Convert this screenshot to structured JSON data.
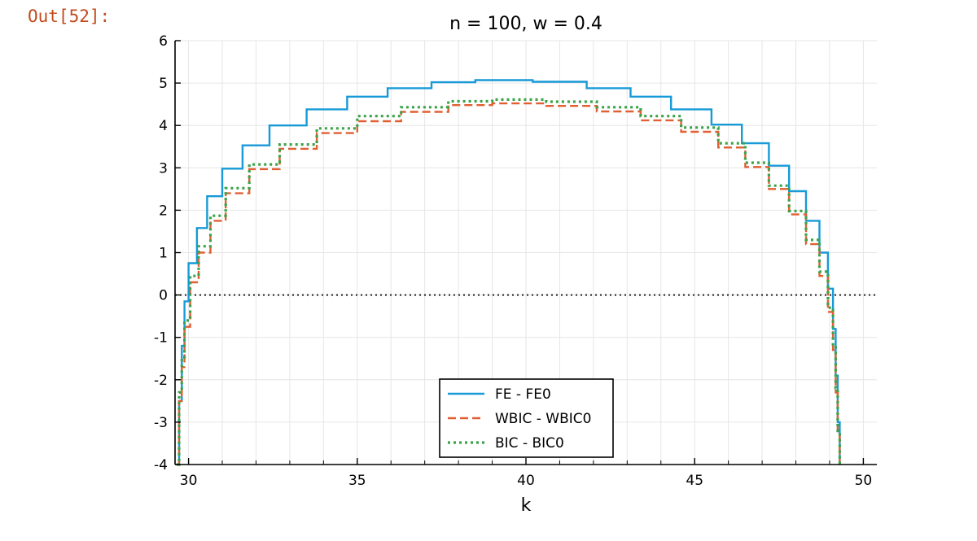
{
  "notebook": {
    "out_label": "Out[52]:"
  },
  "colors": {
    "fe": "#179ad7",
    "wbic": "#e15f32",
    "bic": "#3aa34a",
    "zero_line": "#222222"
  },
  "chart_data": {
    "type": "line",
    "title": "n = 100,  w = 0.4",
    "xlabel": "k",
    "ylabel": "",
    "xlim": [
      29.6,
      50.4
    ],
    "ylim": [
      -4,
      6
    ],
    "x_ticks": [
      30,
      35,
      40,
      45,
      50
    ],
    "y_ticks": [
      -4,
      -3,
      -2,
      -1,
      0,
      1,
      2,
      3,
      4,
      5,
      6
    ],
    "grid": true,
    "legend_position": "bottom-center",
    "zero_line": {
      "y": 0,
      "style": "dotted"
    },
    "series": [
      {
        "name": "FE - FE0",
        "style": "solid",
        "color_key": "fe",
        "points": [
          [
            29.65,
            -4
          ],
          [
            29.72,
            -2.5
          ],
          [
            29.8,
            -1.2
          ],
          [
            29.88,
            -0.15
          ],
          [
            30,
            0.75
          ],
          [
            30.25,
            1.58
          ],
          [
            30.55,
            2.33
          ],
          [
            31,
            2.98
          ],
          [
            31.6,
            3.53
          ],
          [
            32.4,
            4.0
          ],
          [
            33.5,
            4.38
          ],
          [
            34.7,
            4.68
          ],
          [
            35.9,
            4.88
          ],
          [
            37.2,
            5.02
          ],
          [
            38.5,
            5.07
          ],
          [
            40.2,
            5.03
          ],
          [
            41.8,
            4.88
          ],
          [
            43.1,
            4.68
          ],
          [
            44.3,
            4.38
          ],
          [
            45.5,
            4.02
          ],
          [
            46.4,
            3.58
          ],
          [
            47.2,
            3.05
          ],
          [
            47.8,
            2.45
          ],
          [
            48.3,
            1.75
          ],
          [
            48.7,
            1.0
          ],
          [
            48.95,
            0.15
          ],
          [
            49.1,
            -0.8
          ],
          [
            49.18,
            -1.9
          ],
          [
            49.24,
            -3.0
          ],
          [
            49.3,
            -4
          ]
        ]
      },
      {
        "name": "WBIC - WBIC0",
        "style": "dashed",
        "color_key": "wbic",
        "points": [
          [
            29.65,
            -4
          ],
          [
            29.72,
            -2.5
          ],
          [
            29.8,
            -1.7
          ],
          [
            29.88,
            -0.75
          ],
          [
            30.05,
            0.3
          ],
          [
            30.3,
            1.0
          ],
          [
            30.65,
            1.75
          ],
          [
            31.1,
            2.4
          ],
          [
            31.8,
            2.97
          ],
          [
            32.7,
            3.45
          ],
          [
            33.8,
            3.82
          ],
          [
            35.0,
            4.1
          ],
          [
            36.3,
            4.32
          ],
          [
            37.7,
            4.48
          ],
          [
            39.0,
            4.52
          ],
          [
            40.6,
            4.46
          ],
          [
            42.1,
            4.33
          ],
          [
            43.4,
            4.12
          ],
          [
            44.6,
            3.85
          ],
          [
            45.7,
            3.48
          ],
          [
            46.5,
            3.02
          ],
          [
            47.2,
            2.5
          ],
          [
            47.8,
            1.9
          ],
          [
            48.3,
            1.2
          ],
          [
            48.7,
            0.45
          ],
          [
            48.95,
            -0.4
          ],
          [
            49.1,
            -1.3
          ],
          [
            49.18,
            -2.3
          ],
          [
            49.24,
            -3.3
          ],
          [
            49.3,
            -4
          ]
        ]
      },
      {
        "name": "BIC - BIC0",
        "style": "dotted",
        "color_key": "bic",
        "points": [
          [
            29.65,
            -4
          ],
          [
            29.72,
            -2.3
          ],
          [
            29.8,
            -1.5
          ],
          [
            29.88,
            -0.6
          ],
          [
            30.05,
            0.45
          ],
          [
            30.3,
            1.15
          ],
          [
            30.65,
            1.87
          ],
          [
            31.1,
            2.52
          ],
          [
            31.8,
            3.08
          ],
          [
            32.7,
            3.55
          ],
          [
            33.8,
            3.93
          ],
          [
            35.0,
            4.22
          ],
          [
            36.3,
            4.43
          ],
          [
            37.7,
            4.57
          ],
          [
            39.0,
            4.61
          ],
          [
            40.6,
            4.56
          ],
          [
            42.1,
            4.43
          ],
          [
            43.4,
            4.22
          ],
          [
            44.6,
            3.95
          ],
          [
            45.7,
            3.58
          ],
          [
            46.5,
            3.12
          ],
          [
            47.2,
            2.58
          ],
          [
            47.8,
            1.98
          ],
          [
            48.3,
            1.3
          ],
          [
            48.7,
            0.55
          ],
          [
            48.95,
            -0.3
          ],
          [
            49.1,
            -1.2
          ],
          [
            49.18,
            -2.2
          ],
          [
            49.24,
            -3.2
          ],
          [
            49.3,
            -4
          ]
        ]
      }
    ]
  }
}
